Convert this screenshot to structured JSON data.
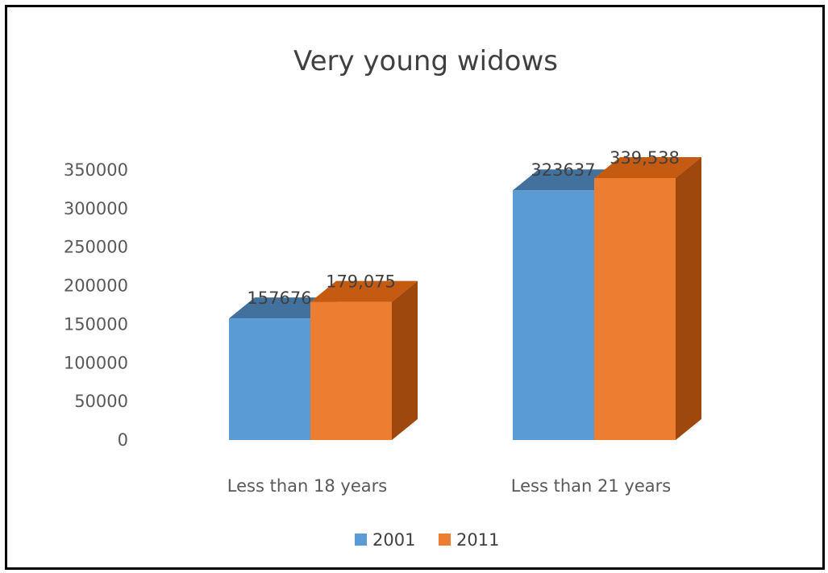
{
  "chart_data": {
    "type": "bar",
    "title": "Very young widows",
    "xlabel": "",
    "ylabel": "",
    "categories": [
      "Less than 18 years",
      "Less than 21 years"
    ],
    "series": [
      {
        "name": "2001",
        "values": [
          157676,
          323637
        ],
        "labels": [
          "157676",
          "323637"
        ],
        "color": "#5B9BD5",
        "side_color": "#41719C",
        "top_color": "#41719C"
      },
      {
        "name": "2011",
        "values": [
          179075,
          339538
        ],
        "labels": [
          "179,075",
          "339,538"
        ],
        "color": "#ED7D31",
        "side_color": "#9E480E",
        "top_color": "#C55A11"
      }
    ],
    "ylim": [
      0,
      350000
    ],
    "yticks": [
      "0",
      "50000",
      "100000",
      "150000",
      "200000",
      "250000",
      "300000",
      "350000"
    ],
    "grid": false,
    "legend": "bottom",
    "three_d": true
  }
}
